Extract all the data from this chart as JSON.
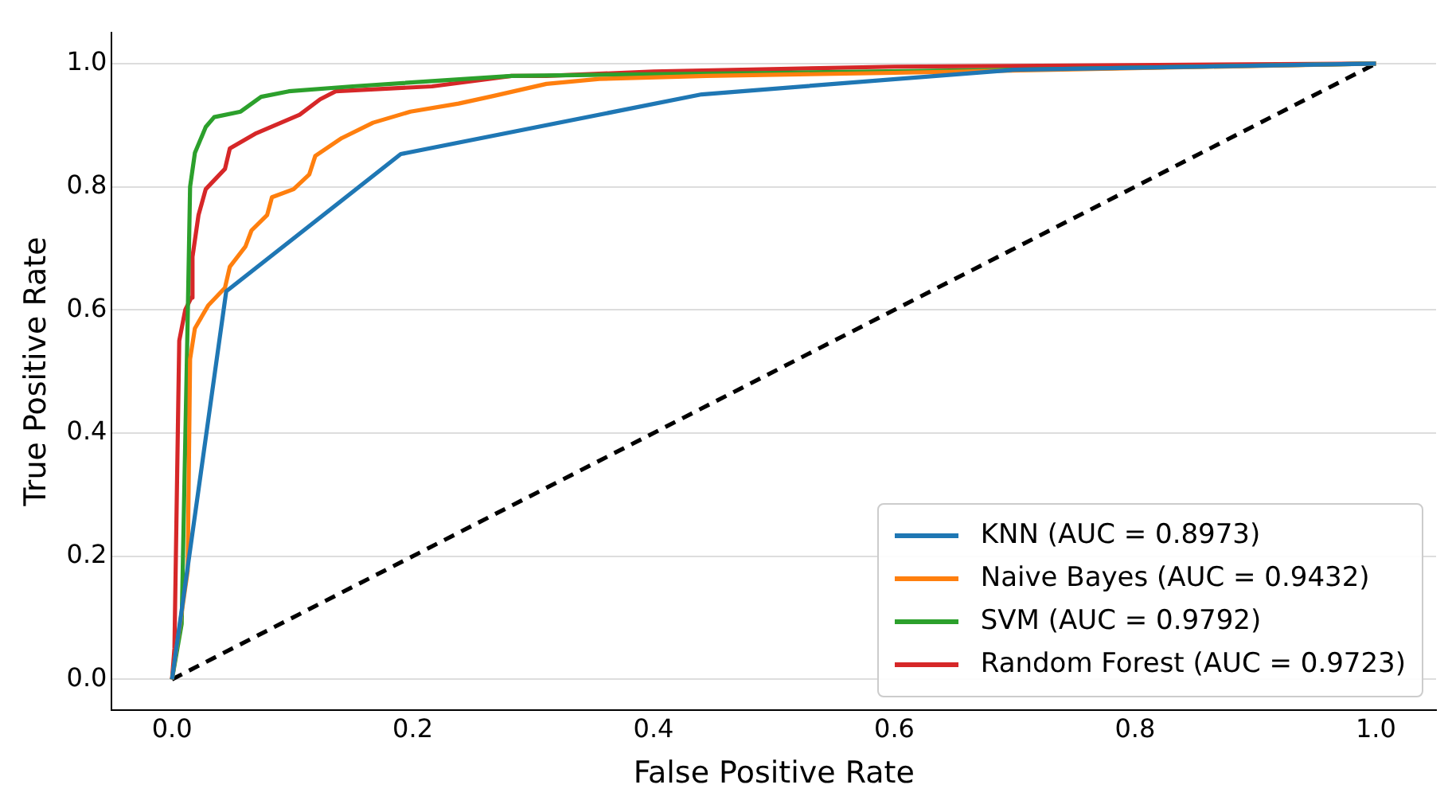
{
  "chart_data": {
    "type": "line",
    "xlabel": "False Positive Rate",
    "ylabel": "True Positive Rate",
    "xlim": [
      -0.05,
      1.05
    ],
    "ylim": [
      -0.05,
      1.05
    ],
    "xticks": [
      {
        "value": 0,
        "label": "0.0"
      },
      {
        "value": 0.2,
        "label": "0.2"
      },
      {
        "value": 0.4,
        "label": "0.4"
      },
      {
        "value": 0.6,
        "label": "0.6"
      },
      {
        "value": 0.8,
        "label": "0.8"
      },
      {
        "value": 1,
        "label": "1.0"
      }
    ],
    "yticks": [
      {
        "value": 0,
        "label": "0.0"
      },
      {
        "value": 0.2,
        "label": "0.2"
      },
      {
        "value": 0.4,
        "label": "0.4"
      },
      {
        "value": 0.6,
        "label": "0.6"
      },
      {
        "value": 0.8,
        "label": "0.8"
      },
      {
        "value": 1,
        "label": "1.0"
      }
    ],
    "grid": "y",
    "legend": "bottom right",
    "marker": "none",
    "line_style": "solid",
    "series": [
      {
        "name": "KNN (AUC = 0.8973)",
        "color": "#1f77b4",
        "x": [
          0,
          0.045,
          0.19,
          0.44,
          0.7,
          1
        ],
        "values": [
          0,
          0.63,
          0.853,
          0.95,
          0.99,
          1
        ]
      },
      {
        "name": "Naive Bayes (AUC = 0.9432)",
        "color": "#ff7f0e",
        "x": [
          0,
          0.013,
          0.015,
          0.019,
          0.03,
          0.044,
          0.048,
          0.061,
          0.066,
          0.079,
          0.083,
          0.101,
          0.114,
          0.119,
          0.141,
          0.167,
          0.198,
          0.238,
          0.266,
          0.311,
          0.355,
          0.444,
          0.6,
          1
        ],
        "values": [
          0,
          0.176,
          0.52,
          0.57,
          0.607,
          0.636,
          0.67,
          0.703,
          0.729,
          0.754,
          0.783,
          0.796,
          0.82,
          0.85,
          0.879,
          0.904,
          0.922,
          0.935,
          0.947,
          0.967,
          0.975,
          0.98,
          0.985,
          1
        ]
      },
      {
        "name": "SVM (AUC = 0.9792)",
        "color": "#2ca02c",
        "x": [
          0,
          0.008,
          0.013,
          0.015,
          0.019,
          0.028,
          0.035,
          0.057,
          0.074,
          0.097,
          0.15,
          0.282,
          0.5,
          0.7,
          1
        ],
        "values": [
          0,
          0.09,
          0.585,
          0.8,
          0.855,
          0.897,
          0.913,
          0.922,
          0.946,
          0.955,
          0.963,
          0.98,
          0.985,
          0.99,
          1
        ]
      },
      {
        "name": "Random Forest (AUC = 0.9723)",
        "color": "#d62728",
        "x": [
          0,
          0.002,
          0.004,
          0.006,
          0.011,
          0.016,
          0.017,
          0.022,
          0.028,
          0.044,
          0.048,
          0.07,
          0.106,
          0.123,
          0.136,
          0.216,
          0.282,
          0.311,
          0.4,
          0.6,
          1
        ],
        "values": [
          0,
          0.05,
          0.3,
          0.55,
          0.6,
          0.62,
          0.686,
          0.754,
          0.796,
          0.829,
          0.862,
          0.887,
          0.917,
          0.942,
          0.955,
          0.963,
          0.98,
          0.98,
          0.987,
          0.995,
          1
        ]
      },
      {
        "type": "line",
        "color": "#000000",
        "line_style": "dashed",
        "x": [
          0,
          1
        ],
        "values": [
          0,
          1
        ]
      }
    ]
  }
}
